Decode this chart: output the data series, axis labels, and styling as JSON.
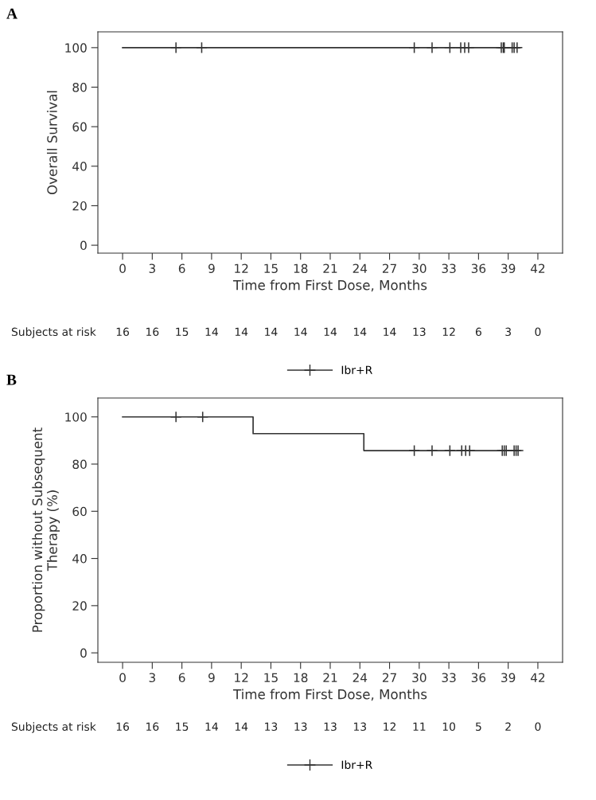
{
  "chart_data": [
    {
      "type": "step",
      "title": "A",
      "xlabel": "Time from First Dose, Months",
      "ylabel": "Overall Survival",
      "series": [
        {
          "name": "Ibr+R",
          "color": "#333333",
          "x": [
            0,
            40.2
          ],
          "values": [
            100,
            100
          ]
        },
        {
          "type": "scatter",
          "color": "#333333",
          "marker": "cross",
          "x": [
            5.4,
            8.0,
            29.5,
            31.3,
            33.1,
            34.2,
            34.6,
            35.0,
            38.3,
            38.5,
            38.6,
            39.4,
            39.6,
            39.9
          ],
          "values": [
            100,
            100,
            100,
            100,
            100,
            100,
            100,
            100,
            100,
            100,
            100,
            100,
            100,
            100
          ]
        }
      ],
      "xlim": [
        -2.5,
        44.5
      ],
      "xticks": [
        0,
        3,
        6,
        9,
        12,
        15,
        18,
        21,
        24,
        27,
        30,
        33,
        36,
        39,
        42
      ],
      "ylim": [
        -4,
        108
      ],
      "yticks": [
        0,
        20,
        40,
        60,
        80,
        100
      ],
      "grid": false,
      "legend": "bottom",
      "annotations": [
        "Subjects at risk",
        "16",
        "16",
        "15",
        "14",
        "14",
        "14",
        "14",
        "14",
        "14",
        "14",
        "13",
        "12",
        "6",
        "3",
        "0"
      ]
    },
    {
      "type": "step",
      "title": "B",
      "xlabel": "Time from First Dose, Months",
      "ylabel": "Proportion without Subsequent\nTherapy (%)",
      "series": [
        {
          "name": "Ibr+R",
          "color": "#333333",
          "x": [
            0,
            13.2,
            24.4,
            40.0
          ],
          "values": [
            100,
            92.9,
            85.7,
            85.7
          ]
        },
        {
          "type": "scatter",
          "color": "#333333",
          "marker": "cross",
          "x": [
            5.4,
            8.1,
            29.5,
            31.3,
            33.1,
            34.3,
            34.7,
            35.1,
            38.4,
            38.6,
            38.8,
            39.6,
            39.8,
            40.0
          ],
          "values": [
            100,
            100,
            85.7,
            85.7,
            85.7,
            85.7,
            85.7,
            85.7,
            85.7,
            85.7,
            85.7,
            85.7,
            85.7,
            85.7
          ]
        }
      ],
      "xlim": [
        -2.5,
        44.5
      ],
      "xticks": [
        0,
        3,
        6,
        9,
        12,
        15,
        18,
        21,
        24,
        27,
        30,
        33,
        36,
        39,
        42
      ],
      "ylim": [
        -4,
        108
      ],
      "yticks": [
        0,
        20,
        40,
        60,
        80,
        100
      ],
      "grid": false,
      "legend": "bottom",
      "annotations": [
        "Subjects at risk",
        "16",
        "16",
        "15",
        "14",
        "14",
        "13",
        "13",
        "13",
        "13",
        "12",
        "11",
        "10",
        "5",
        "2",
        "0"
      ]
    }
  ]
}
